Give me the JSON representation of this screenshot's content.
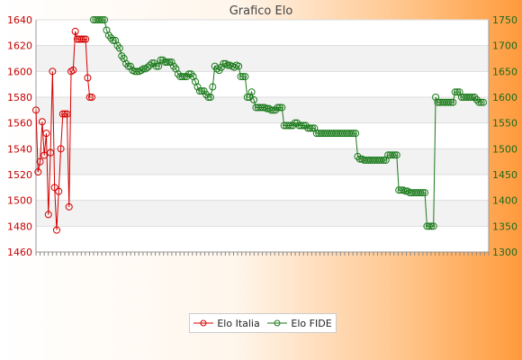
{
  "colors": {
    "italia": "#d40000",
    "fide": "#1a7a1a"
  },
  "chart_data": {
    "type": "line",
    "title": "Grafico Elo",
    "y_left": {
      "lim": [
        1460,
        1640
      ],
      "ticks": [
        1460,
        1480,
        1500,
        1520,
        1540,
        1560,
        1580,
        1600,
        1620,
        1640
      ]
    },
    "y_right": {
      "lim": [
        1300,
        1750
      ],
      "ticks": [
        1300,
        1350,
        1400,
        1450,
        1500,
        1550,
        1600,
        1650,
        1700,
        1750
      ]
    },
    "grid": true,
    "legend_position": "bottom-center",
    "series": [
      {
        "name": "Elo Italia",
        "axis": "left",
        "values": [
          1570,
          1522,
          1530,
          1561,
          1535,
          1552,
          1489,
          1537,
          1600,
          1510,
          1477,
          1507,
          1540,
          1567,
          1567,
          1567,
          1495,
          1600,
          1601,
          1631,
          1625,
          1625,
          1625,
          1625,
          1625,
          1595,
          1580,
          1580
        ]
      },
      {
        "name": "Elo FIDE",
        "axis": "right",
        "values": [
          1750,
          1750,
          1750,
          1750,
          1750,
          1750,
          1730,
          1720,
          1715,
          1710,
          1710,
          1700,
          1695,
          1680,
          1675,
          1665,
          1660,
          1660,
          1652,
          1650,
          1650,
          1650,
          1652,
          1655,
          1655,
          1658,
          1662,
          1666,
          1666,
          1660,
          1660,
          1672,
          1672,
          1668,
          1668,
          1668,
          1668,
          1660,
          1655,
          1645,
          1640,
          1640,
          1640,
          1640,
          1645,
          1645,
          1640,
          1630,
          1620,
          1612,
          1612,
          1612,
          1605,
          1600,
          1600,
          1620,
          1660,
          1655,
          1652,
          1658,
          1665,
          1665,
          1662,
          1662,
          1660,
          1658,
          1662,
          1660,
          1640,
          1640,
          1640,
          1600,
          1600,
          1610,
          1595,
          1580,
          1580,
          1580,
          1580,
          1580,
          1578,
          1578,
          1575,
          1575,
          1575,
          1580,
          1580,
          1580,
          1545,
          1545,
          1545,
          1545,
          1545,
          1550,
          1550,
          1545,
          1545,
          1545,
          1545,
          1540,
          1540,
          1540,
          1540,
          1530,
          1530,
          1530,
          1530,
          1530,
          1530,
          1530,
          1530,
          1530,
          1530,
          1530,
          1530,
          1530,
          1530,
          1530,
          1530,
          1530,
          1530,
          1530,
          1485,
          1480,
          1480,
          1478,
          1478,
          1478,
          1478,
          1478,
          1478,
          1478,
          1478,
          1478,
          1478,
          1478,
          1488,
          1488,
          1488,
          1488,
          1488,
          1420,
          1420,
          1420,
          1418,
          1418,
          1415,
          1415,
          1415,
          1415,
          1415,
          1415,
          1415,
          1415,
          1350,
          1350,
          1350,
          1350,
          1600,
          1590,
          1590,
          1590,
          1590,
          1590,
          1590,
          1590,
          1590,
          1610,
          1610,
          1610,
          1600,
          1600,
          1600,
          1600,
          1600,
          1600,
          1600,
          1595,
          1590,
          1590,
          1590
        ]
      }
    ]
  },
  "legend": {
    "italia_label": "Elo Italia",
    "fide_label": "Elo FIDE"
  }
}
